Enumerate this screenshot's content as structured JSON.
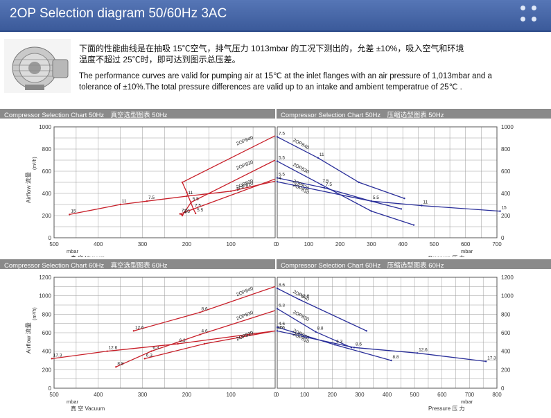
{
  "header": {
    "title": "2OP Selection diagram 50/60Hz 3AC"
  },
  "intro": {
    "cn_line1": "下面的性能曲线是在抽吸 15℃空气，排气压力 1013mbar 的工况下测出的，允差 ±10%，吸入空气和环境",
    "cn_line2": "温度不超过 25℃时，即可达到图示总压差。",
    "en_line1": "The performance curves are valid for pumping air at 15℃ at the inlet flanges with an air pressure of 1,013mbar and a",
    "en_line2": "tolerance of ±10%.The total pressure differences are valid up to an intake and ambient temperatrue of 25℃ ."
  },
  "colors": {
    "vacuum": "#c8202a",
    "pressure": "#2a2f9a",
    "grid": "#9a9a9a",
    "strip": "#8a8a8a"
  },
  "chart_data": [
    {
      "type": "line",
      "title_left": "Compressor Selection Chart 50Hz　真空选型图表 50Hz",
      "title_right": "Compressor Selection Chart 50Hz　压缩选型图表 50Hz",
      "ylabel": "Airflow 流量",
      "yunit": "(m³/h)",
      "xunit": "mbar",
      "xlabel_left": "真 空 Vacuum",
      "xlabel_right": "Pressure 压 力",
      "ylim": [
        0,
        1000
      ],
      "yticks": [
        0,
        200,
        400,
        600,
        800,
        1000
      ],
      "vacuum_ticks": [
        500,
        400,
        300,
        200,
        100,
        0
      ],
      "pressure_ticks": [
        0,
        100,
        200,
        300,
        400,
        500,
        600,
        700
      ],
      "vacuum_series": [
        {
          "name": "2OP840",
          "points": [
            [
              180,
              220
            ],
            [
              185,
              260
            ],
            [
              200,
              410
            ],
            [
              210,
              500
            ],
            [
              0,
              920
            ]
          ],
          "labels": [
            "5.5",
            "7.5"
          ]
        },
        {
          "name": "2OP830",
          "points": [
            [
              210,
              200
            ],
            [
              190,
              320
            ],
            [
              0,
              700
            ]
          ],
          "labels": [
            "4",
            "5.5"
          ]
        },
        {
          "name": "2OP820",
          "points": [
            [
              210,
              205
            ],
            [
              215,
              215
            ],
            [
              0,
              530
            ]
          ],
          "labels": [
            "5.5",
            "7.5"
          ]
        },
        {
          "name": "2OP810",
          "points": [
            [
              465,
              210
            ],
            [
              350,
              300
            ],
            [
              290,
              330
            ],
            [
              200,
              375
            ],
            [
              100,
              420
            ],
            [
              0,
              510
            ]
          ],
          "labels": [
            "15",
            "11",
            "7.5",
            "11"
          ]
        }
      ],
      "pressure_series": [
        {
          "name": "2OP840",
          "points": [
            [
              0,
              910
            ],
            [
              130,
              720
            ],
            [
              260,
              500
            ],
            [
              405,
              355
            ]
          ],
          "labels": [
            "7.5",
            "11"
          ]
        },
        {
          "name": "2OP830",
          "points": [
            [
              0,
              690
            ],
            [
              140,
              480
            ],
            [
              300,
              240
            ],
            [
              435,
              115
            ]
          ],
          "labels": [
            "5.5",
            "7.5"
          ]
        },
        {
          "name": "2OP820",
          "points": [
            [
              0,
              540
            ],
            [
              150,
              450
            ],
            [
              300,
              330
            ],
            [
              395,
              260
            ]
          ],
          "labels": [
            "5.5",
            "7.5"
          ]
        },
        {
          "name": "2OP810",
          "points": [
            [
              0,
              505
            ],
            [
              300,
              330
            ],
            [
              460,
              290
            ],
            [
              710,
              240
            ]
          ],
          "labels": [
            "4",
            "5.5",
            "11",
            "15"
          ]
        }
      ]
    },
    {
      "type": "line",
      "title_left": "Compressor Selection Chart 60Hz　真空选型图表 60Hz",
      "title_right": "Compressor Selection Chart 60Hz　压缩选型图表 60Hz",
      "ylabel": "Airflow 流量",
      "yunit": "(m³/h)",
      "xunit": "mbar",
      "xlabel_left": "真 空 Vacuum",
      "xlabel_right": "Pressure 压 力",
      "ylim": [
        0,
        1200
      ],
      "yticks": [
        0,
        200,
        400,
        600,
        800,
        1000,
        1200
      ],
      "vacuum_ticks": [
        500,
        400,
        300,
        200,
        100,
        0
      ],
      "pressure_ticks": [
        0,
        100,
        200,
        300,
        400,
        500,
        600,
        700,
        800
      ],
      "vacuum_series": [
        {
          "name": "2OP840",
          "points": [
            [
              320,
              620
            ],
            [
              170,
              820
            ],
            [
              0,
              1100
            ]
          ],
          "labels": [
            "12.6",
            "8.6"
          ]
        },
        {
          "name": "2OP830",
          "points": [
            [
              360,
              230
            ],
            [
              280,
              400
            ],
            [
              170,
              580
            ],
            [
              0,
              840
            ]
          ],
          "labels": [
            "8.8",
            "6.3",
            "4.6"
          ]
        },
        {
          "name": "2OP820",
          "points": [
            [
              295,
              320
            ],
            [
              160,
              480
            ],
            [
              0,
              620
            ]
          ],
          "labels": [
            "6.3"
          ]
        },
        {
          "name": "2OP810",
          "points": [
            [
              505,
              320
            ],
            [
              380,
              400
            ],
            [
              220,
              480
            ],
            [
              0,
              620
            ]
          ],
          "labels": [
            "17.3",
            "12.6",
            "6.3",
            "4.6"
          ]
        }
      ],
      "pressure_series": [
        {
          "name": "2OP840",
          "points": [
            [
              0,
              1080
            ],
            [
              80,
              960
            ],
            [
              325,
              620
            ]
          ],
          "labels": [
            "8.6",
            "12.6"
          ]
        },
        {
          "name": "2OP830",
          "points": [
            [
              0,
              860
            ],
            [
              140,
              610
            ],
            [
              270,
              440
            ]
          ],
          "labels": [
            "6.3",
            "8.8"
          ]
        },
        {
          "name": "2OP820",
          "points": [
            [
              0,
              660
            ],
            [
              210,
              470
            ],
            [
              415,
              300
            ]
          ],
          "labels": [
            "4.6",
            "6.3",
            "8.8"
          ]
        },
        {
          "name": "2OP810",
          "points": [
            [
              0,
              620
            ],
            [
              280,
              440
            ],
            [
              510,
              380
            ],
            [
              760,
              290
            ]
          ],
          "labels": [
            "4.6",
            "8.6",
            "12.6",
            "17.3"
          ]
        }
      ]
    }
  ]
}
